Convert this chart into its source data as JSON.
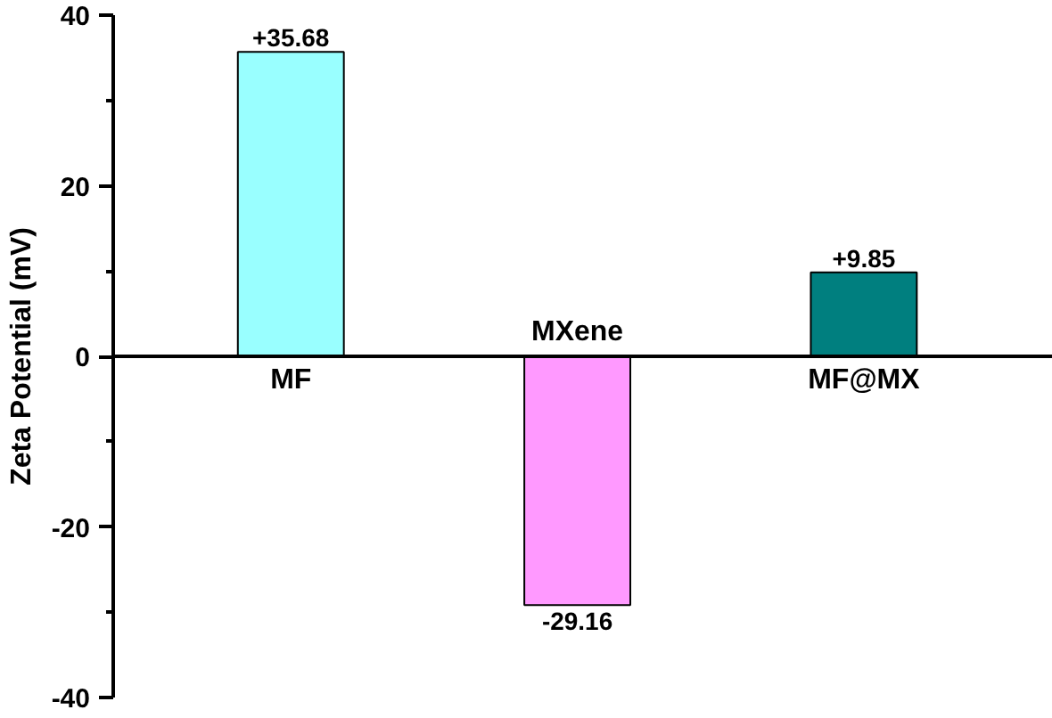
{
  "chart_data": {
    "type": "bar",
    "ylabel": "Zeta Potential (mV)",
    "categories": [
      "MF",
      "MXene",
      "MF@MX"
    ],
    "values": [
      35.68,
      -29.16,
      9.85
    ],
    "colors": [
      "#99ffff",
      "#ff99ff",
      "#007f7f"
    ],
    "value_labels": [
      "+35.68",
      "-29.16",
      "+9.85"
    ],
    "ylim": [
      -40,
      40
    ],
    "yticks": [
      -40,
      {
        "value": -30,
        "label": null
      },
      -20,
      {
        "value": -10,
        "label": null
      },
      0,
      {
        "value": 10,
        "label": null
      },
      20,
      {
        "value": 30,
        "label": null
      },
      40
    ],
    "grid": false
  }
}
